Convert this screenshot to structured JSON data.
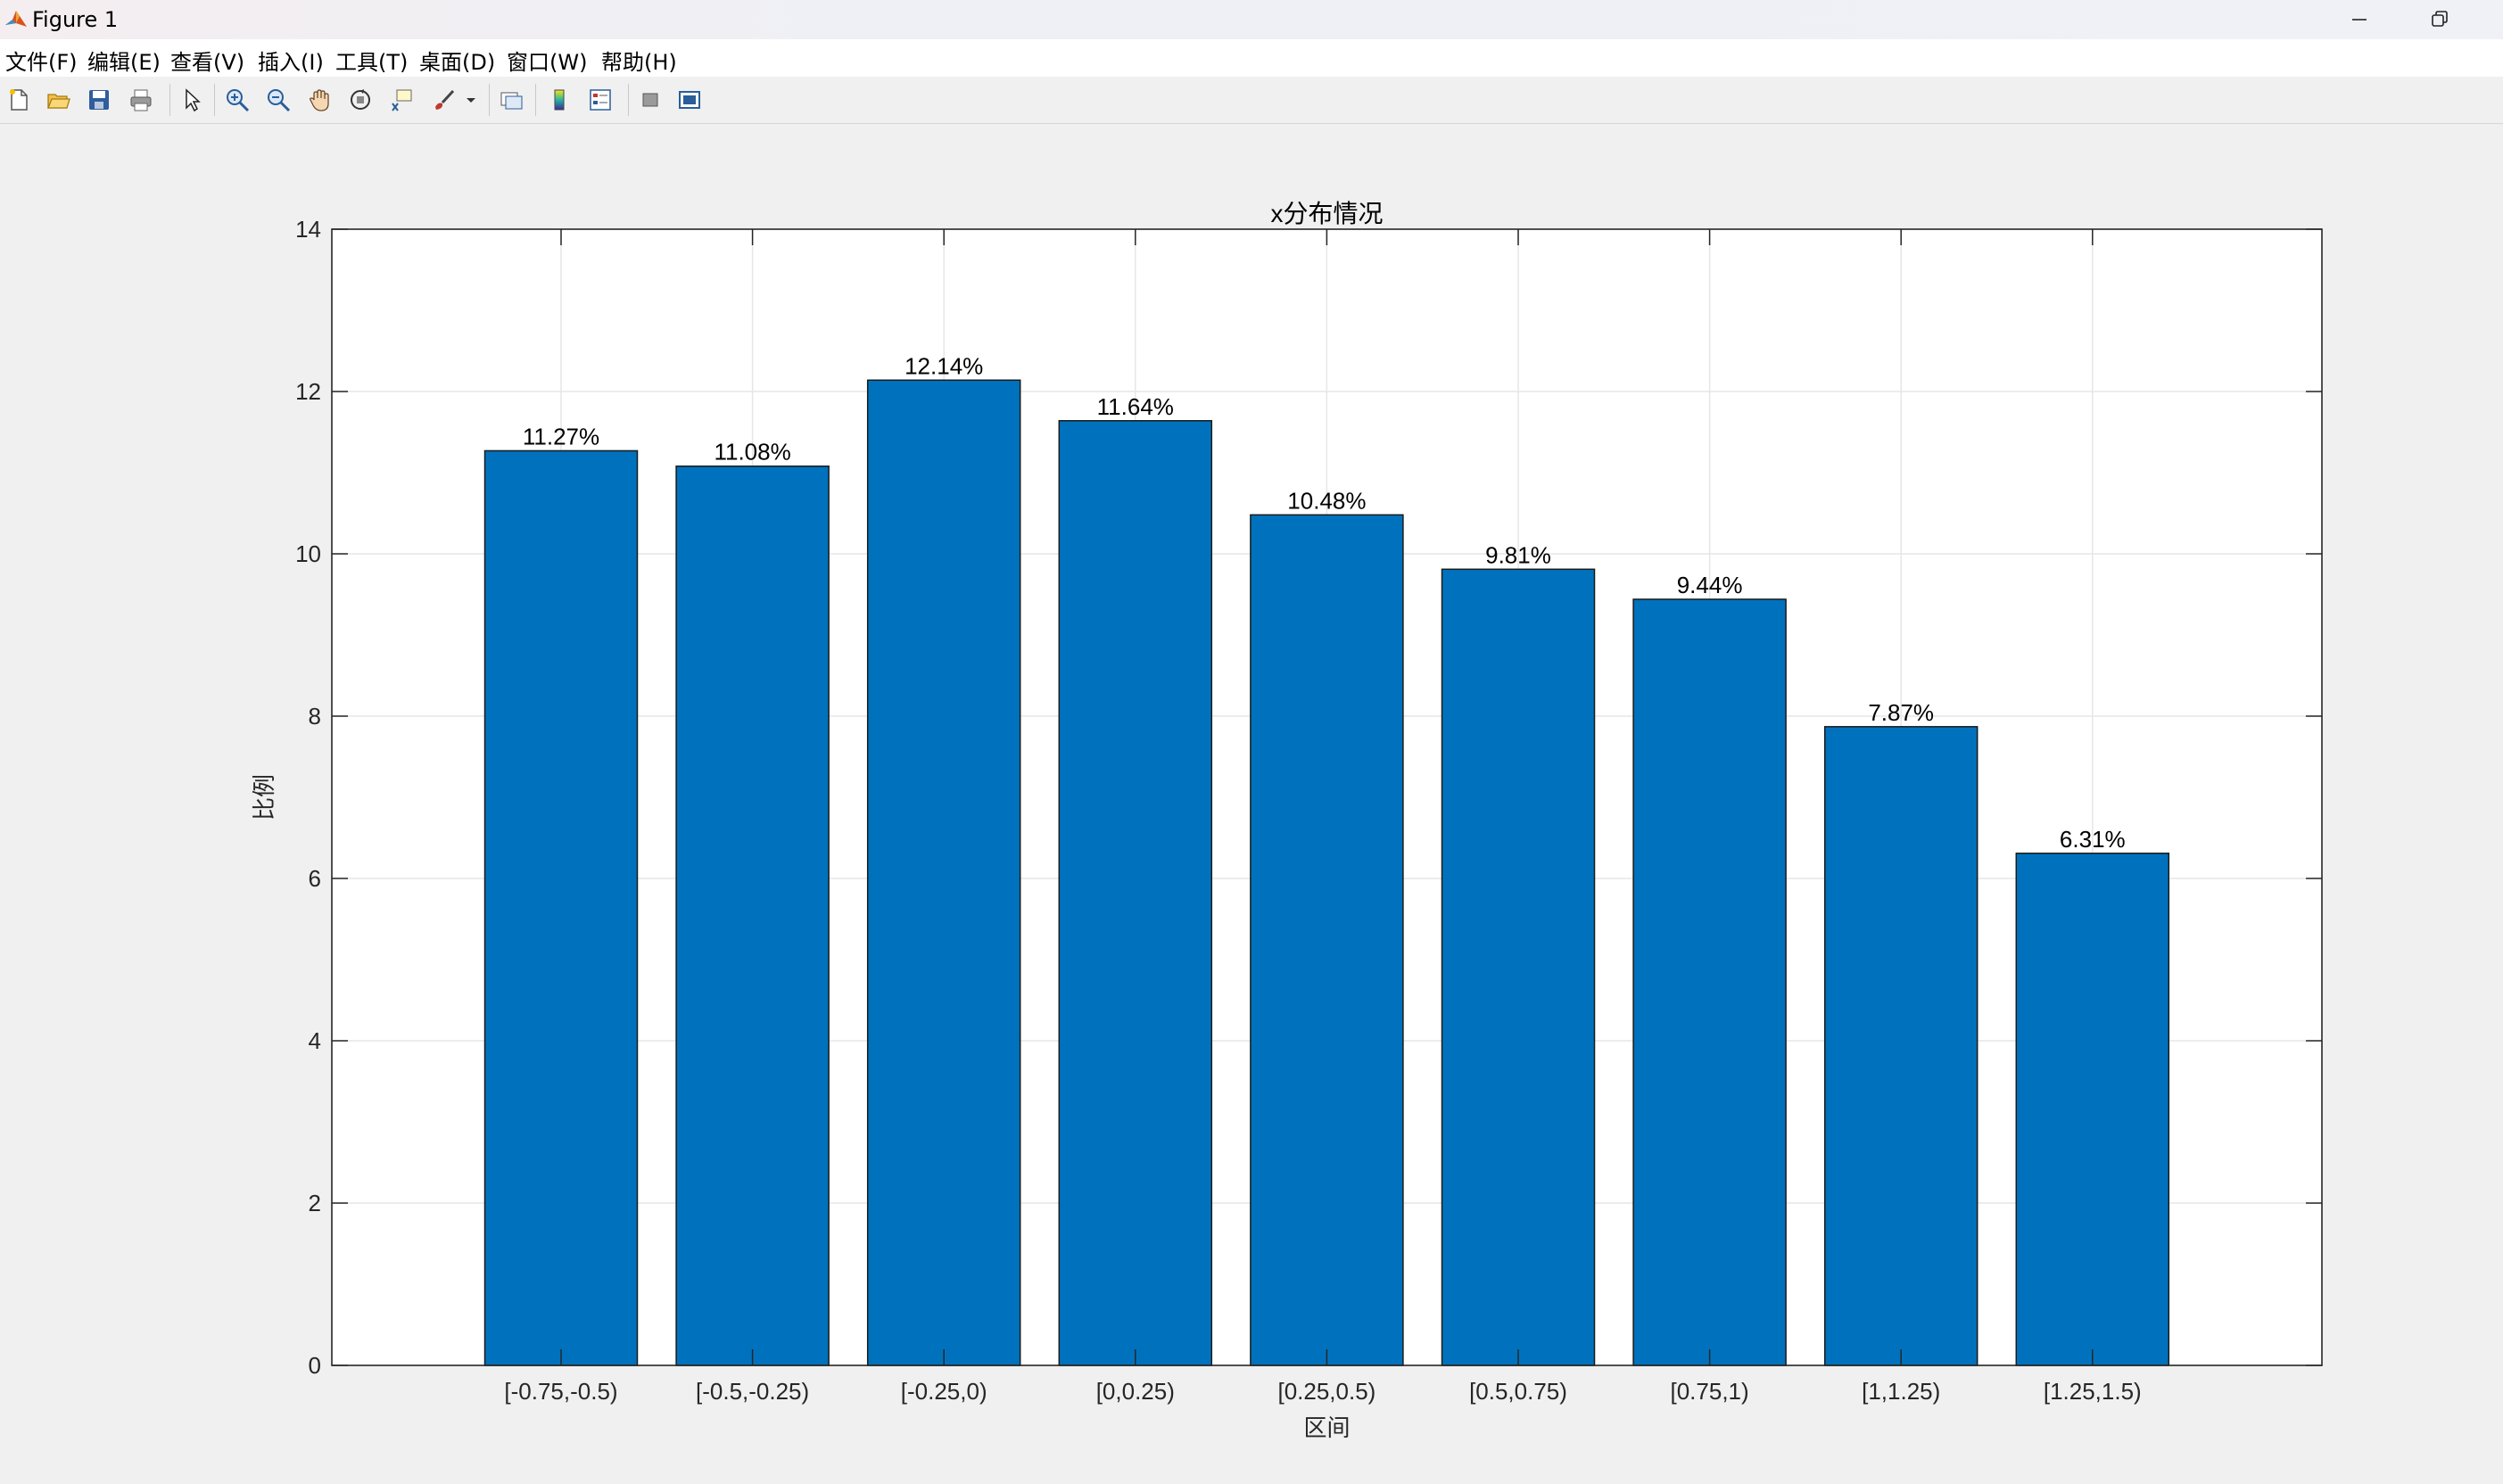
{
  "window": {
    "title": "Figure 1"
  },
  "menu": [
    {
      "label": "文件(F)"
    },
    {
      "label": "编辑(E)"
    },
    {
      "label": "查看(V)"
    },
    {
      "label": "插入(I)"
    },
    {
      "label": "工具(T)"
    },
    {
      "label": "桌面(D)"
    },
    {
      "label": "窗口(W)"
    },
    {
      "label": "帮助(H)"
    }
  ],
  "toolbar": {
    "icons": [
      "new-figure-icon",
      "open-file-icon",
      "save-icon",
      "print-icon",
      "select-arrow-icon",
      "zoom-in-icon",
      "zoom-out-icon",
      "pan-hand-icon",
      "rotate-3d-icon",
      "data-cursor-icon",
      "brush-icon",
      "link-plot-icon",
      "colorbar-icon",
      "legend-icon",
      "hide-plot-tools-icon",
      "show-plot-tools-icon"
    ]
  },
  "colors": {
    "bar": "#0072bd",
    "axes_bg": "#ffffff",
    "figure_bg": "#f0f0f0",
    "grid": "#e6e6e6"
  },
  "chart_data": {
    "type": "bar",
    "title": "x分布情况",
    "xlabel": "区间",
    "ylabel": "比例",
    "categories": [
      "[-0.75,-0.5)",
      "[-0.5,-0.25)",
      "[-0.25,0)",
      "[0,0.25)",
      "[0.25,0.5)",
      "[0.5,0.75)",
      "[0.75,1)",
      "[1,1.25)",
      "[1.25,1.5)"
    ],
    "values": [
      11.27,
      11.08,
      12.14,
      11.64,
      10.48,
      9.81,
      9.44,
      7.87,
      6.31
    ],
    "data_labels": [
      "11.27%",
      "11.08%",
      "12.14%",
      "11.64%",
      "10.48%",
      "9.81%",
      "9.44%",
      "7.87%",
      "6.31%"
    ],
    "ylim": [
      0,
      14
    ],
    "yticks": [
      "0",
      "2",
      "4",
      "6",
      "8",
      "10",
      "12",
      "14"
    ],
    "grid": true,
    "box": true
  }
}
